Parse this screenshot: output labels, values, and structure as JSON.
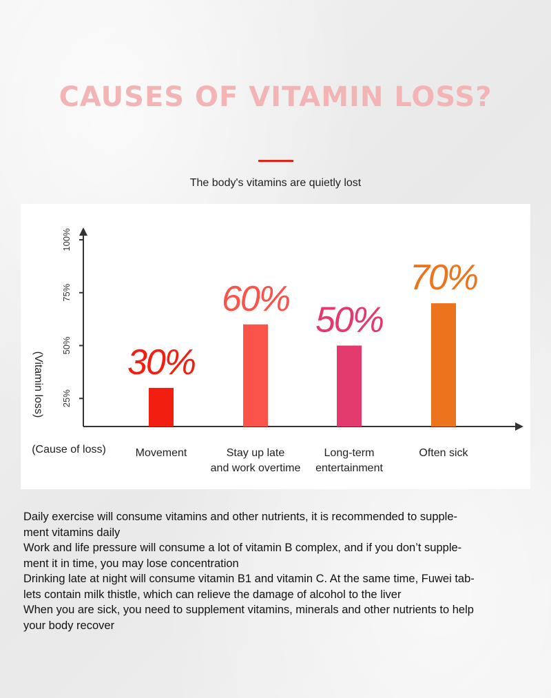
{
  "header": {
    "title": "CAUSES OF VITAMIN LOSS?",
    "subtitle": "The body's vitamins are quietly lost"
  },
  "chart_data": {
    "type": "bar",
    "categories": [
      [
        "Movement"
      ],
      [
        "Stay up late",
        "and work overtime"
      ],
      [
        "Long-term",
        "entertainment"
      ],
      [
        "Often sick"
      ]
    ],
    "values": [
      30,
      60,
      50,
      70
    ],
    "value_labels": [
      "30%",
      "60%",
      "50%",
      "70%"
    ],
    "colors": [
      "#f21e10",
      "#f9534a",
      "#e33a6d",
      "#ec741c"
    ],
    "ylabel": "(Vitamin loss)",
    "xlabel": "(Cause of loss)",
    "yticks": [
      25,
      50,
      75,
      100
    ],
    "ytick_labels": [
      "25%",
      "50%",
      "75%",
      "100%"
    ],
    "ylim": [
      0,
      100
    ],
    "grid": false
  },
  "description": [
    "Daily exercise will consume vitamins and other nutrients, it is recommended to supple-",
    "ment vitamins daily",
    "Work and life pressure will consume a lot of vitamin B complex, and if you don’t supple-",
    "ment it in time, you may lose concentration",
    "Drinking late at night will consume vitamin B1 and vitamin C. At the same time, Fuwei tab-",
    "lets contain milk thistle, which can relieve the damage of alcohol to the liver",
    "When you are sick, you need to supplement vitamins, minerals and other nutrients to help",
    "your body recover"
  ]
}
